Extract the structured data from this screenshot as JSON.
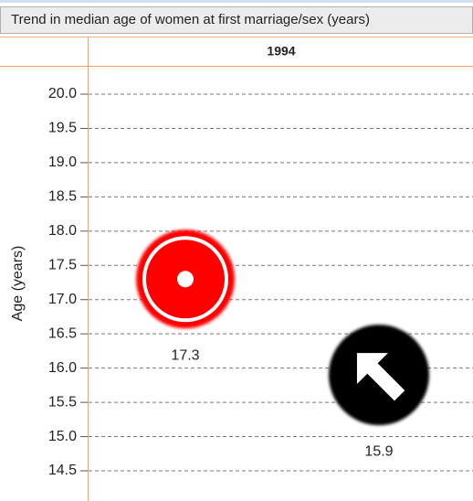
{
  "chart_data": {
    "type": "symbol",
    "title": "Trend in median age of women at first marriage/sex (years)",
    "ylabel": "Age (years)",
    "categories": [
      "1994"
    ],
    "series": [
      {
        "values": [
          17.3
        ],
        "color": "#ff0000",
        "marker": "target"
      },
      {
        "values": [
          15.9
        ],
        "color": "#000000",
        "marker": "arrow"
      }
    ],
    "ylim": [
      14.5,
      20.0
    ],
    "yticks": [
      {
        "value": 14.5,
        "label": "14.5"
      },
      {
        "value": 15,
        "label": "15.0"
      },
      15.5,
      {
        "value": 16,
        "label": "16.0"
      },
      16.5,
      {
        "value": 17,
        "label": "17.0"
      },
      17.5,
      {
        "value": 18,
        "label": "18.0"
      },
      18.5,
      {
        "value": 19,
        "label": "19.0"
      },
      19.5,
      {
        "value": 20,
        "label": "20.0"
      }
    ],
    "grid": true
  }
}
